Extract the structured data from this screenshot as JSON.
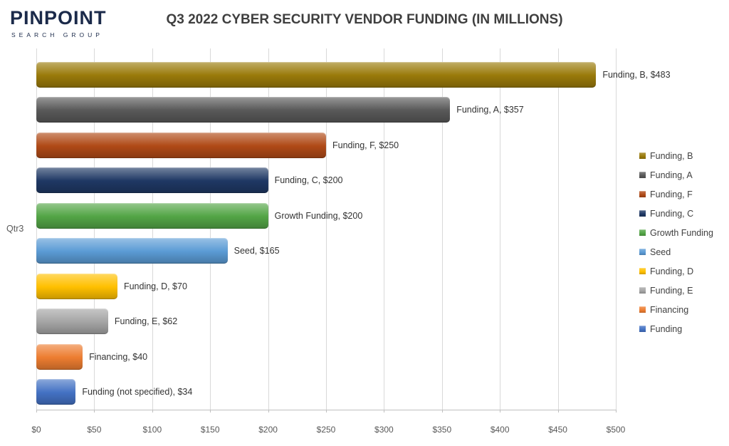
{
  "logo": {
    "brand": "PINPOINT",
    "subtitle": "SEARCH GROUP"
  },
  "chart_data": {
    "type": "bar",
    "orientation": "horizontal",
    "title": "Q3 2022 CYBER SECURITY VENDOR FUNDING (IN MILLIONS)",
    "category_axis_label": "Qtr3",
    "xlim": [
      0,
      500
    ],
    "x_tick_step": 50,
    "x_ticks": [
      "$0",
      "$50",
      "$100",
      "$150",
      "$200",
      "$250",
      "$300",
      "$350",
      "$400",
      "$450",
      "$500"
    ],
    "grid": true,
    "legend_position": "right",
    "series": [
      {
        "name": "Funding, B",
        "value": 483,
        "data_label": "Funding, B, $483",
        "color": "#9A7A0A"
      },
      {
        "name": "Funding, A",
        "value": 357,
        "data_label": "Funding, A, $357",
        "color": "#595959"
      },
      {
        "name": "Funding, F",
        "value": 250,
        "data_label": "Funding, F, $250",
        "color": "#B04A17"
      },
      {
        "name": "Funding, C",
        "value": 200,
        "data_label": "Funding, C, $200",
        "color": "#1F3864"
      },
      {
        "name": "Growth Funding",
        "value": 200,
        "data_label": "Growth Funding, $200",
        "color": "#53A546"
      },
      {
        "name": "Seed",
        "value": 165,
        "data_label": "Seed, $165",
        "color": "#5B9BD5"
      },
      {
        "name": "Funding, D",
        "value": 70,
        "data_label": "Funding, D, $70",
        "color": "#FFC000"
      },
      {
        "name": "Funding, E",
        "value": 62,
        "data_label": "Funding, E, $62",
        "color": "#A5A5A5"
      },
      {
        "name": "Financing",
        "value": 40,
        "data_label": "Financing, $40",
        "color": "#ED7D31"
      },
      {
        "name": "Funding",
        "value": 34,
        "data_label": "Funding (not specified), $34",
        "color": "#4472C4"
      }
    ]
  }
}
